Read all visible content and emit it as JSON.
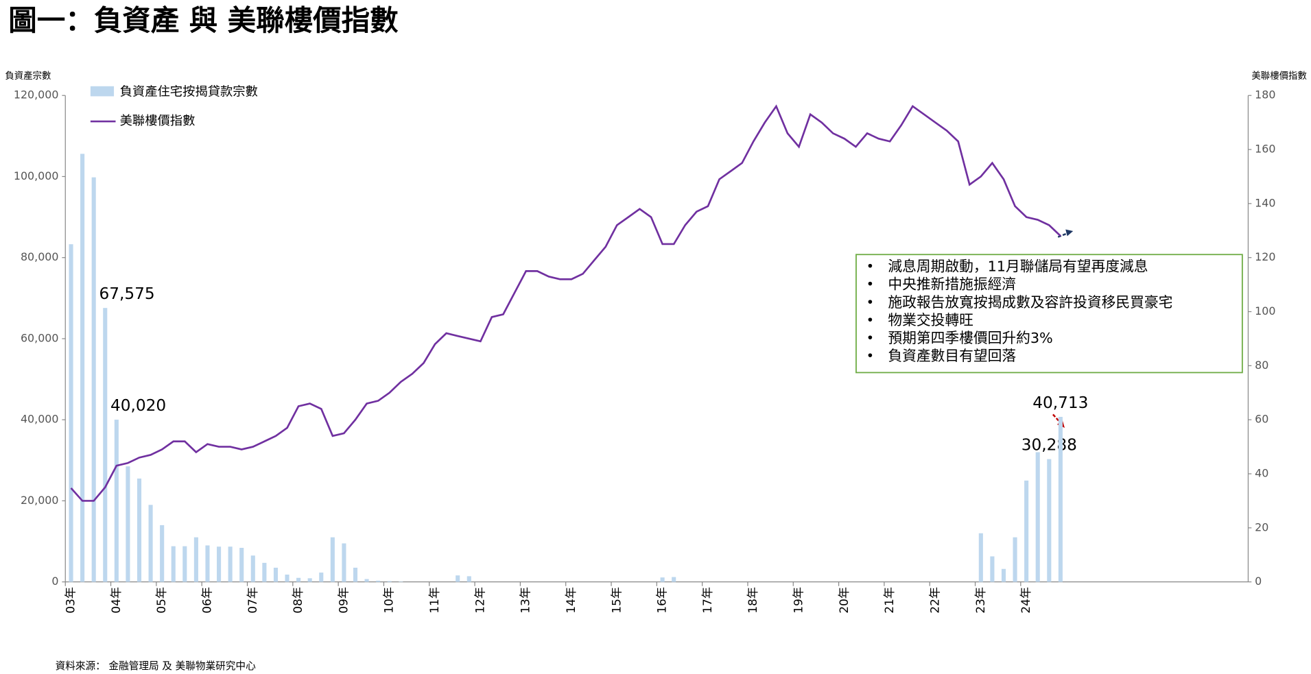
{
  "chart_data": {
    "type": "bar_line",
    "title": "圖一：負資產 與 美聯樓價指數",
    "ylabel": "負資產宗數",
    "y2label": "美聯樓價指數",
    "source": "資料來源： 金融管理局 及 美聯物業研究中心",
    "notes": [
      "減息周期啟動，11月聯儲局有望再度減息",
      "中央推新措施振經濟",
      "施政報告放寬按揭成數及容許投資移民買豪宅",
      "物業交投轉旺",
      "預期第四季樓價回升約3%",
      "負資產數目有望回落"
    ],
    "categories": [
      "03年",
      null,
      null,
      null,
      "04年",
      null,
      null,
      null,
      "05年",
      null,
      null,
      null,
      "06年",
      null,
      null,
      null,
      "07年",
      null,
      null,
      null,
      "08年",
      null,
      null,
      null,
      "09年",
      null,
      null,
      null,
      "10年",
      null,
      null,
      null,
      "11年",
      null,
      null,
      null,
      "12年",
      null,
      null,
      null,
      "13年",
      null,
      null,
      null,
      "14年",
      null,
      null,
      null,
      "15年",
      null,
      null,
      null,
      "16年",
      null,
      null,
      null,
      "17年",
      null,
      null,
      null,
      "18年",
      null,
      null,
      null,
      "19年",
      null,
      null,
      null,
      "20年",
      null,
      null,
      null,
      "21年",
      null,
      null,
      null,
      "22年",
      null,
      null,
      null,
      "23年",
      null,
      null,
      null,
      "24年",
      null,
      null,
      null,
      null,
      null,
      null,
      null,
      null,
      null,
      null,
      null,
      null,
      null,
      null,
      null,
      null,
      null,
      null,
      null
    ],
    "series": [
      {
        "name": "負資產住宅按揭貸款宗數",
        "kind": "bar",
        "color": "#bdd7ee",
        "values": [
          83300,
          105600,
          99800,
          67575,
          40020,
          28500,
          25500,
          19000,
          14000,
          8800,
          8800,
          11000,
          9000,
          8700,
          8700,
          8400,
          6500,
          4700,
          3500,
          1800,
          1000,
          900,
          2300,
          11000,
          9500,
          3500,
          700,
          300,
          200,
          100,
          0,
          0,
          0,
          0,
          1600,
          1400,
          0,
          0,
          0,
          0,
          0,
          0,
          0,
          0,
          0,
          0,
          0,
          0,
          0,
          0,
          0,
          0,
          1100,
          1200,
          0,
          0,
          0,
          0,
          0,
          0,
          0,
          0,
          0,
          0,
          0,
          0,
          0,
          0,
          0,
          0,
          0,
          0,
          0,
          0,
          0,
          0,
          0,
          0,
          0,
          0,
          12000,
          6300,
          3200,
          11000,
          25000,
          32000,
          30288,
          40713,
          null,
          null,
          null,
          null,
          null,
          null,
          null,
          null,
          null,
          null,
          null,
          null,
          null,
          null,
          null,
          null
        ],
        "value_labels": [
          null,
          null,
          null,
          "67,575",
          "40,020",
          null,
          null,
          null,
          null,
          null,
          null,
          null,
          null,
          null,
          null,
          null,
          null,
          null,
          null,
          null,
          null,
          null,
          null,
          null,
          null,
          null,
          null,
          null,
          null,
          null,
          null,
          null,
          null,
          null,
          null,
          null,
          null,
          null,
          null,
          null,
          null,
          null,
          null,
          null,
          null,
          null,
          null,
          null,
          null,
          null,
          null,
          null,
          null,
          null,
          null,
          null,
          null,
          null,
          null,
          null,
          null,
          null,
          null,
          null,
          null,
          null,
          null,
          null,
          null,
          null,
          null,
          null,
          null,
          null,
          null,
          null,
          null,
          null,
          null,
          null,
          null,
          null,
          null,
          null,
          null,
          null,
          "30,288",
          "40,713",
          null,
          null,
          null,
          null,
          null,
          null,
          null,
          null,
          null,
          null,
          null,
          null,
          null,
          null,
          null,
          null
        ]
      },
      {
        "name": "美聯樓價指數",
        "kind": "line",
        "axis": "y2",
        "color": "#7030a0",
        "values": [
          34.7,
          30,
          30,
          35,
          43,
          44,
          46,
          47,
          49,
          52,
          52,
          48,
          51,
          50,
          50,
          49,
          50,
          52,
          54,
          57,
          65,
          66,
          64,
          54,
          55,
          60,
          66,
          67,
          70,
          74,
          77,
          81,
          88,
          92,
          91,
          90,
          89,
          98,
          99,
          107,
          115,
          115,
          113,
          112,
          112,
          114,
          119,
          124,
          132,
          135,
          138,
          135,
          125,
          125,
          132,
          137,
          139,
          149,
          152,
          155,
          163,
          170,
          176,
          166,
          161,
          173,
          170,
          166,
          164,
          161,
          166,
          164,
          163,
          169,
          176,
          173,
          170,
          167,
          163,
          147,
          150,
          155,
          149,
          139,
          135,
          134,
          132,
          128,
          null,
          null,
          null,
          null,
          null,
          null,
          null,
          null,
          null,
          null,
          null,
          null,
          null,
          null,
          null,
          null
        ]
      }
    ],
    "ylim": [
      0,
      120000
    ],
    "yticks": [
      0,
      {
        "value": 20000,
        "label": "20,000"
      },
      {
        "value": 40000,
        "label": "40,000"
      },
      {
        "value": 60000,
        "label": "60,000"
      },
      {
        "value": 80000,
        "label": "80,000"
      },
      {
        "value": 100000,
        "label": "100,000"
      },
      {
        "value": 120000,
        "label": "120,000"
      }
    ],
    "y2lim": [
      0,
      180
    ],
    "y2ticks": [
      0,
      20,
      40,
      60,
      80,
      100,
      120,
      140,
      160,
      180
    ]
  }
}
